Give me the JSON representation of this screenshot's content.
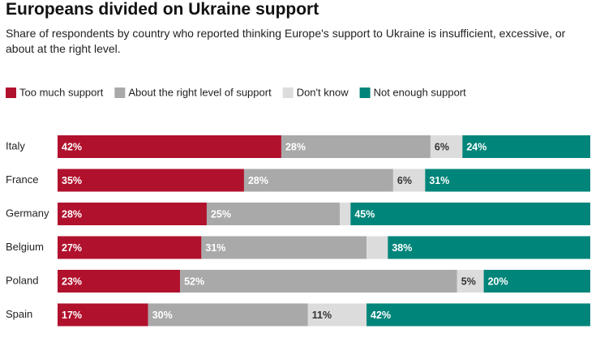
{
  "chart_data": {
    "type": "stacked-bar-horizontal",
    "title": "Europeans divided on Ukraine support",
    "subtitle": "Share of respondents by country who reported thinking Europe's support to Ukraine is insufficient, excessive, or about at the right level.",
    "categories": [
      "Italy",
      "France",
      "Germany",
      "Belgium",
      "Poland",
      "Spain"
    ],
    "series": [
      {
        "name": "Too much support",
        "color": "#b0112d",
        "label_color": "#ffffff",
        "values": [
          42,
          35,
          28,
          27,
          23,
          17
        ],
        "value_labels": [
          "42%",
          "35%",
          "28%",
          "27%",
          "23%",
          "17%"
        ]
      },
      {
        "name": "About the right level of support",
        "color": "#a9a9a9",
        "label_color": "#ffffff",
        "values": [
          28,
          28,
          25,
          31,
          52,
          30
        ],
        "value_labels": [
          "28%",
          "28%",
          "25%",
          "31%",
          "52%",
          "30%"
        ]
      },
      {
        "name": "Don't know",
        "color": "#dcdcdc",
        "label_color": "#333333",
        "values": [
          6,
          6,
          2,
          4,
          5,
          11
        ],
        "value_labels": [
          "6%",
          "6%",
          null,
          null,
          "5%",
          "11%"
        ]
      },
      {
        "name": "Not enough support",
        "color": "#00857a",
        "label_color": "#ffffff",
        "values": [
          24,
          31,
          45,
          38,
          20,
          42
        ],
        "value_labels": [
          "24%",
          "31%",
          "45%",
          "38%",
          "20%",
          "42%"
        ]
      }
    ]
  }
}
